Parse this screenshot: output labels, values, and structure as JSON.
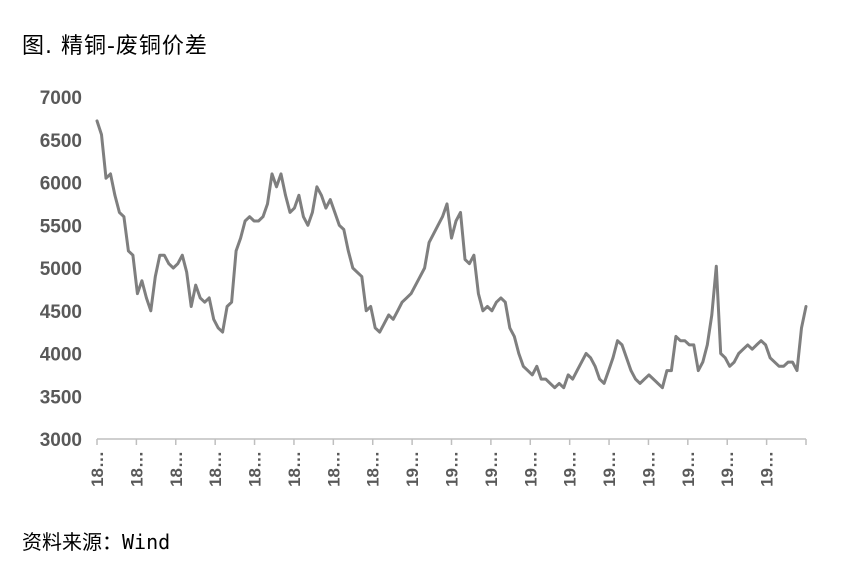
{
  "title": "图. 精铜-废铜价差",
  "source": "资料来源：Wind",
  "chart_data": {
    "type": "line",
    "title": "图. 精铜-废铜价差",
    "xlabel": "",
    "ylabel": "",
    "ylim": [
      3000,
      7000
    ],
    "yticks": [
      3000,
      3500,
      4000,
      4500,
      5000,
      5500,
      6000,
      6500,
      7000
    ],
    "xtick_labels": [
      "18…",
      "18…",
      "18…",
      "18…",
      "18…",
      "18…",
      "18…",
      "18…",
      "19…",
      "19…",
      "19…",
      "19…",
      "19…",
      "19…",
      "19…",
      "19…",
      "19…",
      "19…"
    ],
    "grid": false,
    "legend": "none",
    "line_color": "#7f7f7f",
    "series": [
      {
        "values": [
          6720,
          6560,
          6050,
          6100,
          5850,
          5650,
          5600,
          5200,
          5150,
          4700,
          4850,
          4650,
          4500,
          4900,
          5150,
          5150,
          5050,
          5000,
          5050,
          5150,
          4950,
          4550,
          4800,
          4650,
          4600,
          4650,
          4400,
          4300,
          4250,
          4550,
          4600,
          5200,
          5350,
          5550,
          5600,
          5550,
          5550,
          5600,
          5750,
          6100,
          5950,
          6100,
          5850,
          5650,
          5700,
          5850,
          5600,
          5500,
          5650,
          5950,
          5850,
          5700,
          5800,
          5650,
          5500,
          5450,
          5200,
          5000,
          4950,
          4900,
          4500,
          4550,
          4300,
          4250,
          4350,
          4450,
          4400,
          4500,
          4600,
          4650,
          4700,
          4800,
          4900,
          5000,
          5300,
          5400,
          5500,
          5600,
          5750,
          5350,
          5550,
          5650,
          5100,
          5050,
          5150,
          4700,
          4500,
          4550,
          4500,
          4600,
          4650,
          4600,
          4300,
          4200,
          4000,
          3850,
          3800,
          3750,
          3850,
          3700,
          3700,
          3650,
          3600,
          3650,
          3600,
          3750,
          3700,
          3800,
          3900,
          4000,
          3950,
          3850,
          3700,
          3650,
          3800,
          3950,
          4150,
          4100,
          3950,
          3800,
          3700,
          3650,
          3700,
          3750,
          3700,
          3650,
          3600,
          3800,
          3800,
          4200,
          4150,
          4150,
          4100,
          4100,
          3800,
          3900,
          4100,
          4450,
          5020,
          4000,
          3950,
          3850,
          3900,
          4000,
          4050,
          4100,
          4050,
          4100,
          4150,
          4100,
          3950,
          3900,
          3850,
          3850,
          3900,
          3900,
          3800,
          4300,
          4550
        ]
      }
    ]
  }
}
